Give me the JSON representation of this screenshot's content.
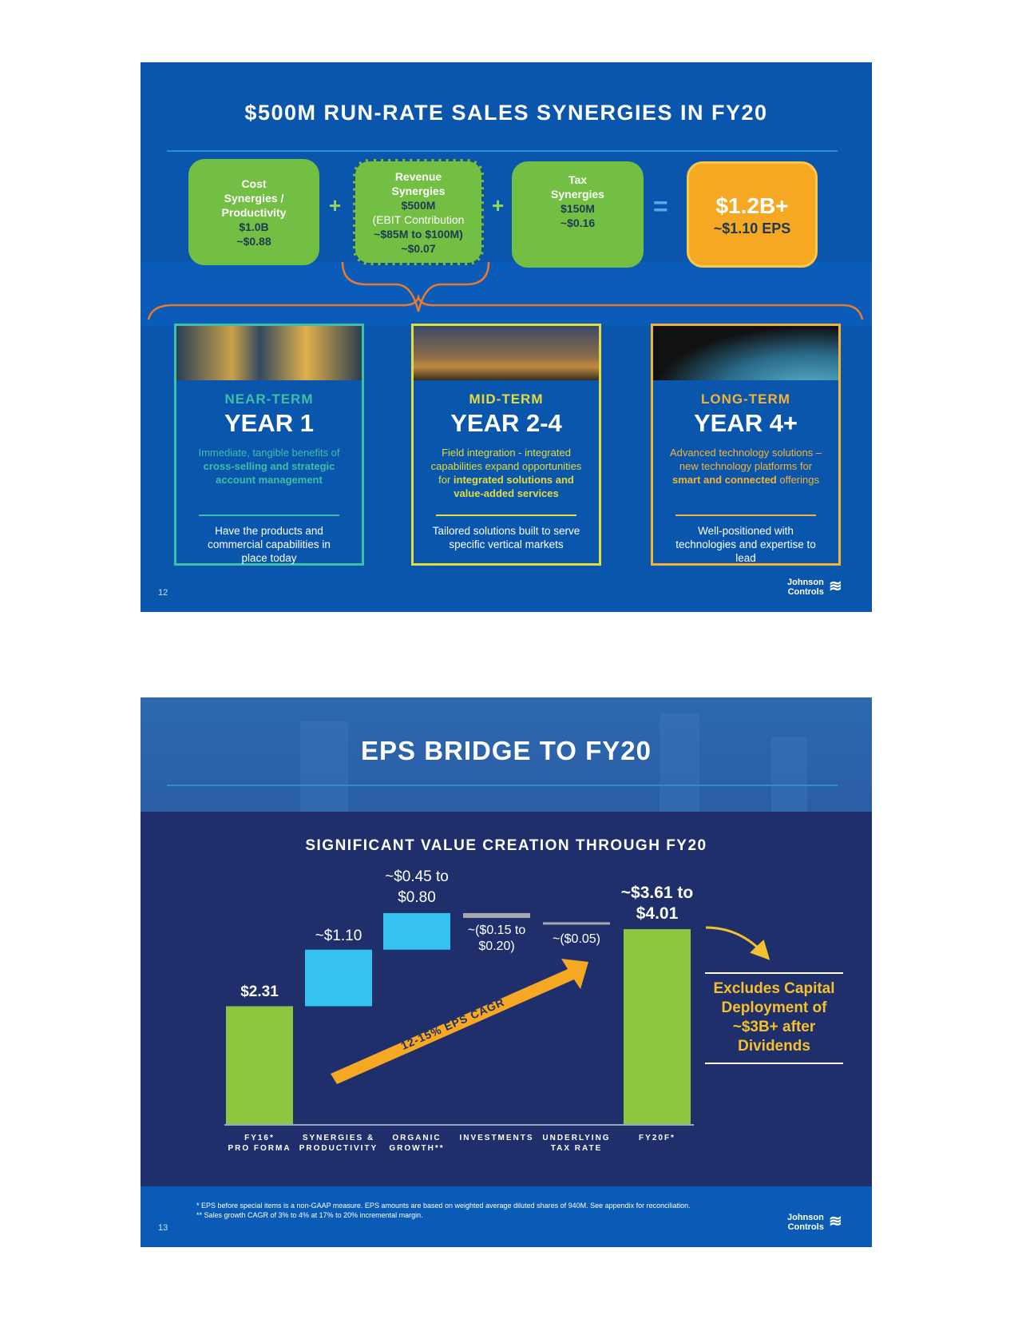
{
  "slide1": {
    "title": "$500M RUN-RATE SALES SYNERGIES IN FY20",
    "page_number": "12",
    "boxes": [
      {
        "lines": [
          "Cost",
          "Synergies /",
          "Productivity"
        ],
        "amount": "$1.0B",
        "eps": "~$0.88"
      },
      {
        "lines": [
          "Revenue",
          "Synergies",
          "$500M"
        ],
        "note": "(EBIT Contribution",
        "range": "~$85M to $100M)",
        "eps": "~$0.07"
      },
      {
        "lines": [
          "Tax",
          "Synergies"
        ],
        "amount": "$150M",
        "eps": "~$0.16"
      }
    ],
    "total": {
      "amount": "$1.2B+",
      "eps": "~$1.10 EPS"
    },
    "operators": {
      "plus": "+",
      "equals": "="
    },
    "cards": [
      {
        "term": "NEAR-TERM",
        "year": "YEAR 1",
        "desc_plain": "Immediate, tangible benefits of ",
        "desc_bold": "cross-selling and strategic account management",
        "desc_end": "",
        "footer": "Have the products and commercial capabilities in place today",
        "color": "#3dbfa8"
      },
      {
        "term": "MID-TERM",
        "year": "YEAR 2-4",
        "desc_plain": "Field integration - integrated capabilities expand opportunities for ",
        "desc_bold": "integrated solutions and value-added services",
        "desc_end": "",
        "footer": "Tailored solutions built to serve specific vertical markets",
        "color": "#e2dc3c"
      },
      {
        "term": "LONG-TERM",
        "year": "YEAR 4+",
        "desc_plain": "Advanced technology solutions – new technology platforms for ",
        "desc_bold": "smart and connected",
        "desc_end": " offerings",
        "footer": "Well-positioned with technologies and expertise to lead",
        "color": "#f5b335"
      }
    ],
    "logo": [
      "Johnson",
      "Controls"
    ]
  },
  "slide2": {
    "title": "EPS BRIDGE TO FY20",
    "page_number": "13",
    "logo": [
      "Johnson",
      "Controls"
    ],
    "arrow_label": "12-15% EPS CAGR",
    "callout": "Excludes Capital Deployment of ~$3B+ after Dividends",
    "footnotes": [
      "* EPS before special items is a non-GAAP measure. EPS amounts are based on weighted average diluted shares of 940M.  See appendix for reconciliation.",
      "** Sales growth CAGR of 3% to 4% at 17% to 20% incremental margin."
    ]
  },
  "chart_data": {
    "type": "waterfall",
    "title": "SIGNIFICANT VALUE CREATION THROUGH FY20",
    "categories": [
      "FY16* PRO FORMA",
      "SYNERGIES & PRODUCTIVITY",
      "ORGANIC GROWTH**",
      "INVESTMENTS",
      "UNDERLYING TAX RATE",
      "FY20F*"
    ],
    "category_lines": [
      [
        "FY16*",
        "PRO FORMA"
      ],
      [
        "SYNERGIES &",
        "PRODUCTIVITY"
      ],
      [
        "ORGANIC",
        "GROWTH**"
      ],
      [
        "INVESTMENTS"
      ],
      [
        "UNDERLYING",
        "TAX RATE"
      ],
      [
        "FY20F*"
      ]
    ],
    "labels": [
      [
        "$2.31"
      ],
      [
        "~$1.10"
      ],
      [
        "~$0.45 to",
        "$0.80"
      ],
      [
        "~($0.15 to",
        "$0.20)"
      ],
      [
        "~($0.05)"
      ],
      [
        "~$3.61 to",
        "$4.01"
      ]
    ],
    "values": [
      {
        "kind": "total",
        "low": 2.31,
        "high": 2.31
      },
      {
        "kind": "delta",
        "low": 1.1,
        "high": 1.1
      },
      {
        "kind": "delta",
        "low": 0.45,
        "high": 0.8
      },
      {
        "kind": "delta",
        "low": -0.2,
        "high": -0.15
      },
      {
        "kind": "delta",
        "low": -0.05,
        "high": -0.05
      },
      {
        "kind": "total",
        "low": 3.61,
        "high": 4.01
      }
    ],
    "colors": {
      "total": "#8dc63f",
      "increase": "#34c3f0",
      "decrease": "#a7a9ac"
    }
  }
}
